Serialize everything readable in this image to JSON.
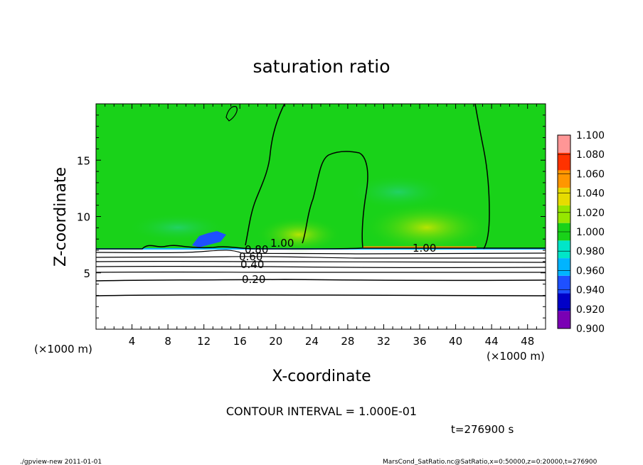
{
  "chart_data": {
    "type": "heatmap",
    "title": "saturation ratio",
    "xlabel": "X-coordinate",
    "ylabel": "Z-coordinate",
    "x_unit": "(×1000 m)",
    "x_unit_right": "(×1000 m)",
    "y_unit": "",
    "xlim": [
      0,
      50
    ],
    "ylim": [
      0,
      20
    ],
    "x_ticks": [
      4,
      8,
      12,
      16,
      20,
      24,
      28,
      32,
      36,
      40,
      44,
      48
    ],
    "y_ticks": [
      5,
      10,
      15
    ],
    "grid": false,
    "colorbar": {
      "levels": [
        "0.900",
        "0.920",
        "0.940",
        "0.960",
        "0.980",
        "1.000",
        "1.020",
        "1.040",
        "1.060",
        "1.080",
        "1.100"
      ],
      "colors": [
        "#7a00b4",
        "#0000c8",
        "#1e50ff",
        "#00b4ff",
        "#00e6c8",
        "#19d219",
        "#96e600",
        "#e6dc00",
        "#ff9600",
        "#ff3200",
        "#ff9696"
      ]
    },
    "contour_labels": [
      "0.20",
      "0.40",
      "0.60",
      "0.80",
      "1.00",
      "1.00"
    ],
    "contour_interval_text": "CONTOUR INTERVAL = 1.000E-01",
    "time_text": "t=276900 s"
  },
  "footer": {
    "left": "./gpview-new  2011-01-01",
    "right": "MarsCond_SatRatio.nc@SatRatio,x=0:50000,z=0:20000,t=276900"
  }
}
